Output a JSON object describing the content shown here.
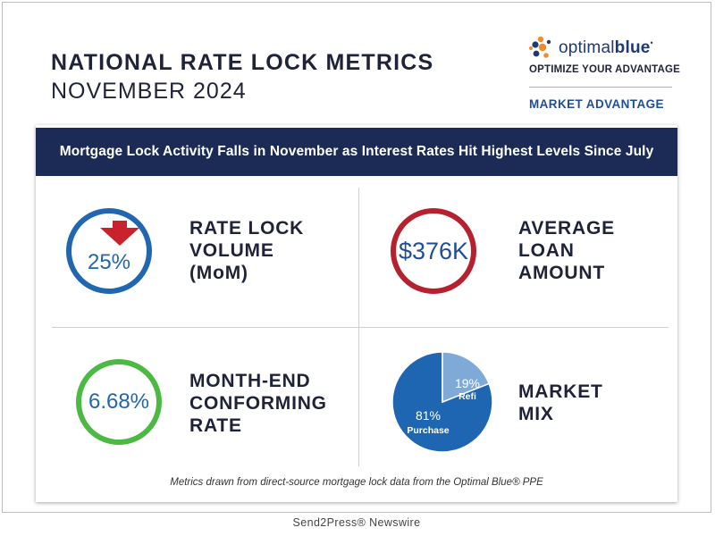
{
  "header": {
    "title": "NATIONAL RATE LOCK METRICS",
    "subtitle": "NOVEMBER 2024"
  },
  "logo": {
    "word_optimal": "optimal",
    "word_blue": "blue",
    "tagline": "OPTIMIZE YOUR ADVANTAGE",
    "section": "MARKET ADVANTAGE",
    "dot_colors": [
      "#f28c28",
      "#1f3a73",
      "#f28c28",
      "#1f3a73",
      "#f28c28"
    ]
  },
  "banner": {
    "text": "Mortgage Lock Activity Falls in November as Interest Rates Hit Highest Levels Since July"
  },
  "metrics": {
    "rate_lock": {
      "value": "25%",
      "direction": "down",
      "label_lines": [
        "RATE LOCK",
        "VOLUME",
        "(MoM)"
      ],
      "color": "#2066b0",
      "icon": "down-arrow-icon"
    },
    "loan_amount": {
      "value": "$376K",
      "label_lines": [
        "AVERAGE",
        "LOAN",
        "AMOUNT"
      ],
      "color": "#b5212e"
    },
    "conforming_rate": {
      "value": "6.68%",
      "label_lines": [
        "MONTH-END",
        "CONFORMING",
        "RATE"
      ],
      "color": "#4cb944"
    },
    "market_mix": {
      "label_lines": [
        "MARKET",
        "MIX"
      ]
    }
  },
  "chart_data": {
    "type": "pie",
    "categories": [
      "Purchase",
      "Refi"
    ],
    "values": [
      81,
      19
    ],
    "value_labels": [
      "81%",
      "19%"
    ],
    "colors": [
      "#1f66b2",
      "#7fa9d6"
    ]
  },
  "footnote": "Metrics drawn from direct-source mortgage lock data from the Optimal Blue® PPE",
  "credit": "Send2Press® Newswire"
}
